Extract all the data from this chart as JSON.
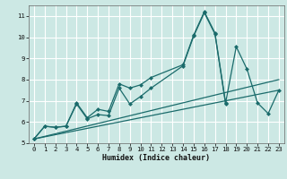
{
  "xlabel": "Humidex (Indice chaleur)",
  "xlim": [
    -0.5,
    23.5
  ],
  "ylim": [
    5,
    11.5
  ],
  "yticks": [
    5,
    6,
    7,
    8,
    9,
    10,
    11
  ],
  "xticks": [
    0,
    1,
    2,
    3,
    4,
    5,
    6,
    7,
    8,
    9,
    10,
    11,
    12,
    13,
    14,
    15,
    16,
    17,
    18,
    19,
    20,
    21,
    22,
    23
  ],
  "bg_color": "#cce8e4",
  "grid_color": "#ffffff",
  "line_color": "#1a6b6b",
  "line1_x": [
    0,
    1,
    2,
    3,
    4,
    5,
    6,
    7,
    8,
    9,
    10,
    11,
    14,
    15,
    16,
    17,
    18,
    19,
    20,
    21,
    22,
    23
  ],
  "line1_y": [
    5.2,
    5.8,
    5.75,
    5.8,
    6.9,
    6.2,
    6.6,
    6.5,
    7.8,
    7.6,
    7.75,
    8.1,
    8.7,
    10.1,
    11.2,
    10.2,
    6.9,
    9.55,
    8.5,
    6.9,
    6.4,
    7.5
  ],
  "line2_x": [
    0,
    1,
    2,
    3,
    4,
    5,
    6,
    7,
    8,
    9,
    10,
    11,
    14,
    15,
    16,
    17,
    18
  ],
  "line2_y": [
    5.2,
    5.8,
    5.75,
    5.8,
    6.85,
    6.15,
    6.35,
    6.3,
    7.6,
    6.85,
    7.2,
    7.6,
    8.65,
    10.05,
    11.15,
    10.15,
    6.85
  ],
  "trend1_x": [
    0,
    23
  ],
  "trend1_y": [
    5.2,
    7.5
  ],
  "trend2_x": [
    0,
    23
  ],
  "trend2_y": [
    5.2,
    8.0
  ]
}
